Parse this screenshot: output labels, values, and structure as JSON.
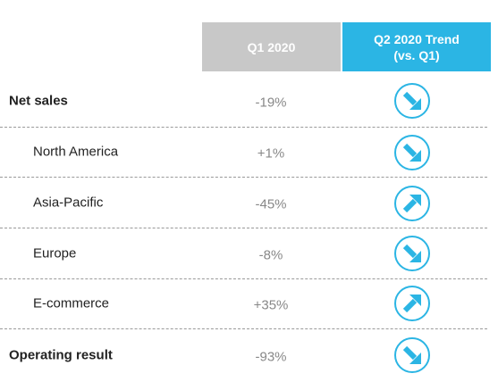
{
  "header": {
    "q1": "Q1 2020",
    "trend": [
      "Q2 2020 Trend",
      "(vs. Q1)"
    ]
  },
  "rows": [
    {
      "label": "Net sales",
      "q1": "-19%"
    },
    {
      "label": "North America",
      "q1": "+1%"
    },
    {
      "label": "Asia-Pacific",
      "q1": "-45%"
    },
    {
      "label": "Europe",
      "q1": "-8%"
    },
    {
      "label": "E-commerce",
      "q1": "+35%"
    },
    {
      "label": "Operating result",
      "q1": "-93%"
    }
  ]
}
